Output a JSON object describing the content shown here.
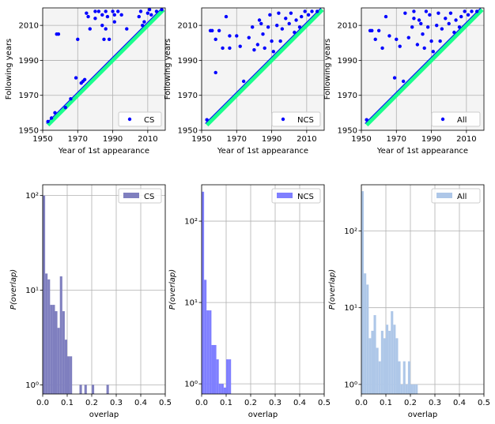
{
  "chart_data": [
    {
      "type": "scatter",
      "xlabel": "Year of 1st appearance",
      "ylabel": "Following years",
      "facecolor": "#f4f4f4",
      "xlim": [
        1950,
        2020
      ],
      "ylim": [
        1950,
        2020
      ],
      "xticks": [
        1950,
        1970,
        1990,
        2010
      ],
      "yticks": [
        1950,
        1970,
        1990,
        2010
      ],
      "grid": true,
      "legend": "lower right",
      "diagonal": {
        "x": [
          1953,
          2019
        ],
        "y": [
          1953,
          2019
        ],
        "color": "#1aff8c"
      },
      "series": [
        {
          "name": "CS",
          "color": "#0000ff",
          "x": [
            1953,
            1955,
            1957,
            1958,
            1959,
            1963,
            1966,
            1969,
            1970,
            1972,
            1973,
            1974,
            1975,
            1976,
            1977,
            1980,
            1980,
            1982,
            1984,
            1984,
            1985,
            1986,
            1986,
            1987,
            1988,
            1990,
            1991,
            1991,
            1993,
            1995,
            1998,
            2005,
            2006,
            2008,
            2010,
            2012,
            2015,
            2018,
            2011,
            2007
          ],
          "y": [
            1955,
            1957,
            1960,
            2005,
            2005,
            1963,
            1968,
            1980,
            2002,
            1977,
            1978,
            1979,
            2017,
            2015,
            2008,
            2018,
            2014,
            2018,
            2016,
            2010,
            2002,
            2018,
            2008,
            2015,
            2002,
            2018,
            2012,
            2016,
            2018,
            2016,
            2008,
            2015,
            2018,
            2012,
            2017,
            2016,
            2018,
            2019,
            2019,
            2010
          ]
        }
      ]
    },
    {
      "type": "scatter",
      "xlabel": "Year of 1st appearance",
      "ylabel": "Following years",
      "facecolor": "#f4f4f4",
      "xlim": [
        1950,
        2020
      ],
      "ylim": [
        1950,
        2020
      ],
      "xticks": [
        1950,
        1970,
        1990,
        2010
      ],
      "yticks": [
        1950,
        1970,
        1990,
        2010
      ],
      "grid": true,
      "legend": "lower right",
      "diagonal": {
        "x": [
          1953,
          2019
        ],
        "y": [
          1953,
          2019
        ],
        "color": "#1aff8c"
      },
      "series": [
        {
          "name": "NCS",
          "color": "#0000ff",
          "x": [
            1953,
            1955,
            1956,
            1958,
            1958,
            1960,
            1962,
            1964,
            1966,
            1966,
            1970,
            1972,
            1974,
            1977,
            1979,
            1980,
            1982,
            1983,
            1985,
            1986,
            1988,
            1989,
            1990,
            1991,
            1993,
            1994,
            1995,
            1996,
            1998,
            2000,
            2001,
            2003,
            2004,
            2006,
            2007,
            2009,
            2011,
            2013,
            2016,
            1984
          ],
          "y": [
            1956,
            2007,
            2007,
            2002,
            1983,
            2007,
            1997,
            2015,
            2004,
            1997,
            2004,
            1998,
            1978,
            2003,
            2009,
            1996,
            1999,
            2013,
            2005,
            1997,
            2009,
            2016,
            2001,
            1995,
            2010,
            2017,
            2001,
            2008,
            2014,
            2011,
            2017,
            2006,
            2013,
            2009,
            2015,
            2018,
            2016,
            2018,
            2018,
            2011
          ]
        }
      ]
    },
    {
      "type": "scatter",
      "xlabel": "Year of 1st appearance",
      "ylabel": "Following years",
      "facecolor": "#f4f4f4",
      "xlim": [
        1950,
        2020
      ],
      "ylim": [
        1950,
        2020
      ],
      "xticks": [
        1950,
        1970,
        1990,
        2010
      ],
      "yticks": [
        1950,
        1970,
        1990,
        2010
      ],
      "grid": true,
      "legend": "lower right",
      "diagonal": {
        "x": [
          1953,
          2019
        ],
        "y": [
          1953,
          2019
        ],
        "color": "#1aff8c"
      },
      "series": [
        {
          "name": "All",
          "color": "#0000ff",
          "x": [
            1953,
            1955,
            1956,
            1958,
            1960,
            1962,
            1964,
            1966,
            1969,
            1970,
            1972,
            1974,
            1975,
            1977,
            1979,
            1980,
            1982,
            1983,
            1985,
            1986,
            1988,
            1989,
            1990,
            1991,
            1993,
            1994,
            1995,
            1996,
            1998,
            2000,
            2001,
            2003,
            2004,
            2006,
            2007,
            2009,
            2011,
            2013,
            2016,
            1984,
            1980,
            1987
          ],
          "y": [
            1956,
            2007,
            2007,
            2002,
            2007,
            1997,
            2015,
            2004,
            1980,
            2002,
            1998,
            1978,
            2017,
            2003,
            2009,
            2018,
            1999,
            2013,
            2005,
            1997,
            2009,
            2016,
            2001,
            1995,
            2010,
            2017,
            2001,
            2008,
            2014,
            2011,
            2017,
            2006,
            2013,
            2009,
            2015,
            2018,
            2016,
            2018,
            2018,
            2011,
            2014,
            2018
          ]
        }
      ]
    },
    {
      "type": "histogram",
      "xlabel": "overlap",
      "ylabel": "P(overlap)",
      "facecolor": "#ffffff",
      "xlim": [
        0,
        0.5
      ],
      "ylim": [
        0.8,
        130
      ],
      "log_y": true,
      "xticks": [
        {
          "value": 0,
          "label": "0.0"
        },
        0.1,
        0.2,
        0.3,
        0.4,
        0.5
      ],
      "yticks": [
        {
          "value": 1,
          "label": "10⁰"
        },
        {
          "value": 10,
          "label": "10¹"
        },
        {
          "value": 100,
          "label": "10²"
        }
      ],
      "grid": true,
      "legend": "upper right",
      "bins": [
        0,
        0.01,
        0.02,
        0.03,
        0.04,
        0.05,
        0.06,
        0.07,
        0.08,
        0.09,
        0.1,
        0.11,
        0.12,
        0.13,
        0.14,
        0.15,
        0.16,
        0.17,
        0.18,
        0.19,
        0.2,
        0.21,
        0.22,
        0.23,
        0.24,
        0.25,
        0.26,
        0.27
      ],
      "series": [
        {
          "name": "CS",
          "color": "#7f7fbf",
          "values": [
            100,
            15,
            13,
            7,
            7,
            6,
            4,
            14,
            6,
            3,
            2,
            2,
            0,
            0,
            0,
            1,
            0,
            1,
            0,
            0,
            1,
            0,
            0,
            0,
            0,
            0,
            1
          ]
        }
      ]
    },
    {
      "type": "histogram",
      "xlabel": "overlap",
      "ylabel": "P(overlap)",
      "facecolor": "#ffffff",
      "xlim": [
        0,
        0.5
      ],
      "ylim": [
        0.75,
        280
      ],
      "log_y": true,
      "xticks": [
        {
          "value": 0,
          "label": "0.0"
        },
        0.1,
        0.2,
        0.3,
        0.4,
        0.5
      ],
      "yticks": [
        {
          "value": 1,
          "label": "10⁰"
        },
        {
          "value": 10,
          "label": "10¹"
        },
        {
          "value": 100,
          "label": "10²"
        }
      ],
      "grid": true,
      "legend": "upper right",
      "bins": [
        0,
        0.01,
        0.02,
        0.03,
        0.04,
        0.05,
        0.06,
        0.07,
        0.08,
        0.09,
        0.1,
        0.11,
        0.12
      ],
      "series": [
        {
          "name": "NCS",
          "color": "#7f7fff",
          "values": [
            230,
            19,
            8,
            8,
            3,
            3,
            2,
            1,
            1,
            0.9,
            2,
            2
          ]
        }
      ]
    },
    {
      "type": "histogram",
      "xlabel": "overlap",
      "ylabel": "P(overlap)",
      "facecolor": "#ffffff",
      "xlim": [
        0,
        0.5
      ],
      "ylim": [
        0.75,
        400
      ],
      "log_y": true,
      "xticks": [
        {
          "value": 0,
          "label": "0.0"
        },
        0.1,
        0.2,
        0.3,
        0.4,
        0.5
      ],
      "yticks": [
        {
          "value": 1,
          "label": "10⁰"
        },
        {
          "value": 10,
          "label": "10¹"
        },
        {
          "value": 100,
          "label": "10²"
        }
      ],
      "grid": true,
      "legend": "upper right",
      "bins": [
        0,
        0.01,
        0.02,
        0.03,
        0.04,
        0.05,
        0.06,
        0.07,
        0.08,
        0.09,
        0.1,
        0.11,
        0.12,
        0.13,
        0.14,
        0.15,
        0.16,
        0.17,
        0.18,
        0.19,
        0.2,
        0.21,
        0.22,
        0.23
      ],
      "series": [
        {
          "name": "All",
          "color": "#aec7e8",
          "values": [
            330,
            28,
            20,
            4,
            5,
            8,
            3,
            2,
            5,
            4,
            6,
            5,
            9,
            6,
            4,
            2,
            1,
            2,
            1,
            2,
            1,
            1,
            1
          ]
        }
      ]
    }
  ]
}
